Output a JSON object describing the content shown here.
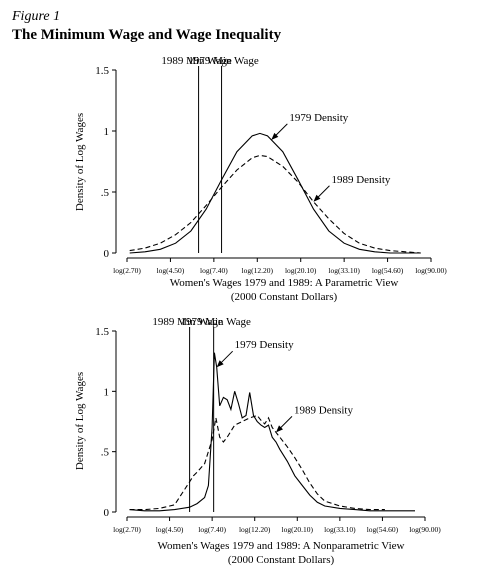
{
  "figure": {
    "label": "Figure 1",
    "title": "The Minimum Wage and Wage Inequality"
  },
  "chart_data": [
    {
      "type": "line",
      "xlabel": "Women's Wages 1979 and 1989: A Parametric View",
      "xlabel2": "(2000 Constant Dollars)",
      "ylabel": "Density of Log Wages",
      "xticks": [
        "log(2.70)",
        "log(4.50)",
        "log(7.40)",
        "log(12.20)",
        "log(20.10)",
        "log(33.10)",
        "log(54.60)",
        "log(90.00)"
      ],
      "xlim": [
        0.5,
        4.6
      ],
      "ylim": [
        0,
        1.5
      ],
      "yticks": [
        0,
        0.5,
        1,
        1.5
      ],
      "ytick_labels": [
        "0",
        ".5",
        "1",
        "1.5"
      ],
      "vlines": [
        {
          "label": "1989 Min Wage",
          "x": 1.5
        },
        {
          "label": "1979 Min Wage",
          "x": 1.8
        }
      ],
      "series": [
        {
          "name": "1979 Density",
          "style": "solid",
          "x": [
            0.6,
            0.8,
            1.0,
            1.2,
            1.4,
            1.6,
            1.8,
            2.0,
            2.2,
            2.3,
            2.4,
            2.6,
            2.8,
            3.0,
            3.2,
            3.4,
            3.6,
            3.8,
            4.0,
            4.2,
            4.4
          ],
          "y": [
            0.0,
            0.01,
            0.03,
            0.08,
            0.18,
            0.36,
            0.6,
            0.83,
            0.96,
            0.98,
            0.96,
            0.83,
            0.6,
            0.36,
            0.18,
            0.08,
            0.03,
            0.01,
            0.0,
            0.0,
            0.0
          ]
        },
        {
          "name": "1989 Density",
          "style": "dashed",
          "x": [
            0.6,
            0.8,
            1.0,
            1.2,
            1.4,
            1.6,
            1.8,
            2.0,
            2.2,
            2.3,
            2.4,
            2.6,
            2.8,
            3.0,
            3.2,
            3.4,
            3.6,
            3.8,
            4.0,
            4.2,
            4.4
          ],
          "y": [
            0.02,
            0.04,
            0.08,
            0.15,
            0.25,
            0.39,
            0.54,
            0.68,
            0.78,
            0.8,
            0.79,
            0.71,
            0.58,
            0.42,
            0.28,
            0.16,
            0.08,
            0.04,
            0.02,
            0.01,
            0.0
          ]
        }
      ],
      "annotations": [
        {
          "text": "1979 Density",
          "series": "1979 Density",
          "x": 2.45
        },
        {
          "text": "1989 Density",
          "series": "1989 Density",
          "x": 3.0
        }
      ]
    },
    {
      "type": "line",
      "xlabel": "Women's Wages 1979 and 1989: A Nonparametric View",
      "xlabel2": "(2000 Constant Dollars)",
      "ylabel": "Density of Log Wages",
      "xticks": [
        "log(2.70)",
        "log(4.50)",
        "log(7.40)",
        "log(12.20)",
        "log(20.10)",
        "log(33.10)",
        "log(54.60)",
        "log(90.00)"
      ],
      "xlim": [
        0.5,
        4.6
      ],
      "ylim": [
        0,
        1.5
      ],
      "yticks": [
        0,
        0.5,
        1,
        1.5
      ],
      "ytick_labels": [
        "0",
        ".5",
        "1",
        "1.5"
      ],
      "vlines": [
        {
          "label": "1989 Min Wage",
          "x": 1.4
        },
        {
          "label": "1979 Min Wage",
          "x": 1.72
        }
      ],
      "series": [
        {
          "name": "1979 Density",
          "style": "solid",
          "x": [
            0.6,
            0.8,
            1.0,
            1.2,
            1.4,
            1.5,
            1.6,
            1.65,
            1.7,
            1.73,
            1.76,
            1.8,
            1.85,
            1.9,
            1.95,
            2.0,
            2.05,
            2.1,
            2.15,
            2.2,
            2.25,
            2.3,
            2.35,
            2.4,
            2.45,
            2.5,
            2.55,
            2.6,
            2.7,
            2.8,
            2.9,
            3.0,
            3.1,
            3.2,
            3.4,
            3.6,
            3.8,
            4.0,
            4.2,
            4.4
          ],
          "y": [
            0.02,
            0.01,
            0.01,
            0.02,
            0.04,
            0.07,
            0.12,
            0.22,
            0.7,
            1.32,
            1.2,
            0.88,
            0.95,
            0.93,
            0.85,
            1.0,
            0.9,
            0.78,
            0.8,
            0.99,
            0.8,
            0.75,
            0.72,
            0.7,
            0.72,
            0.62,
            0.58,
            0.52,
            0.42,
            0.3,
            0.22,
            0.14,
            0.08,
            0.05,
            0.03,
            0.02,
            0.01,
            0.01,
            0.01,
            0.01
          ]
        },
        {
          "name": "1989 Density",
          "style": "dashed",
          "x": [
            0.6,
            0.8,
            1.0,
            1.2,
            1.4,
            1.45,
            1.5,
            1.6,
            1.7,
            1.75,
            1.8,
            1.85,
            1.9,
            2.0,
            2.1,
            2.2,
            2.3,
            2.35,
            2.4,
            2.45,
            2.5,
            2.6,
            2.7,
            2.8,
            2.9,
            3.0,
            3.1,
            3.2,
            3.4,
            3.6,
            3.8,
            4.0
          ],
          "y": [
            0.02,
            0.02,
            0.03,
            0.06,
            0.25,
            0.3,
            0.33,
            0.4,
            0.6,
            0.78,
            0.62,
            0.58,
            0.62,
            0.72,
            0.75,
            0.78,
            0.8,
            0.76,
            0.73,
            0.78,
            0.7,
            0.62,
            0.54,
            0.45,
            0.35,
            0.24,
            0.15,
            0.09,
            0.05,
            0.03,
            0.02,
            0.02
          ]
        }
      ],
      "annotations": [
        {
          "text": "1979 Density",
          "series": "1979 Density",
          "x": 1.76
        },
        {
          "text": "1989 Density",
          "series": "1989 Density",
          "x": 2.55
        }
      ]
    }
  ]
}
